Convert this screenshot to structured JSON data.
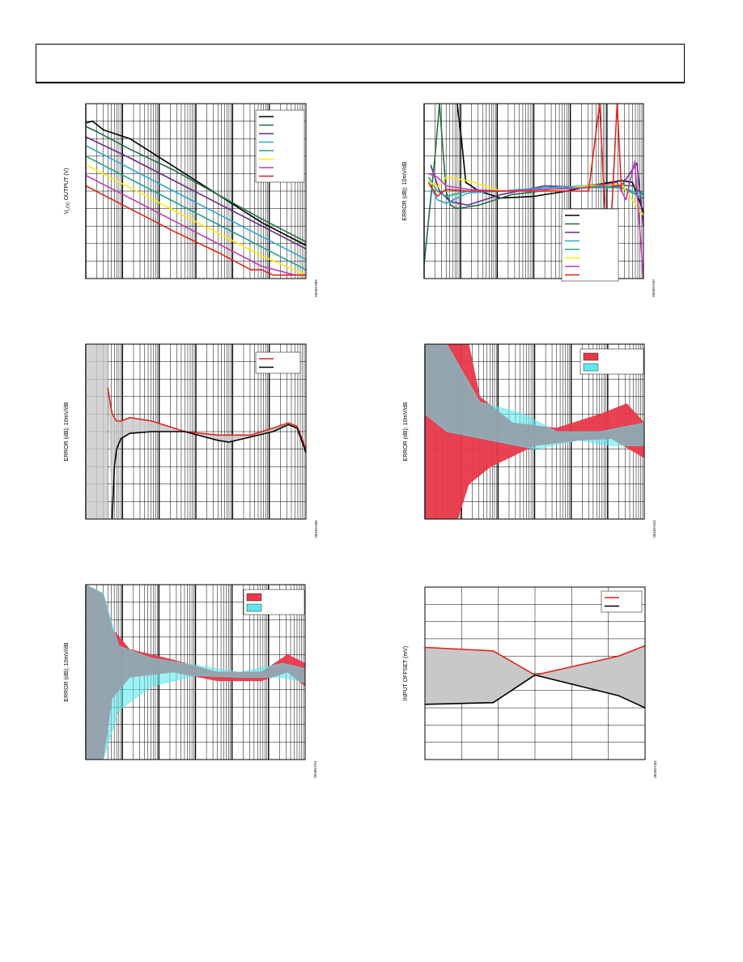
{
  "header": {
    "text": ""
  },
  "colors": {
    "black": "#000000",
    "green": "#1e7040",
    "purple": "#6a2a8a",
    "blue": "#2aa7d6",
    "teal": "#1aa58a",
    "yellow": "#ffee00",
    "magenta": "#c13ab8",
    "red": "#e2231a",
    "bandRed": "#e8394a",
    "bandCyan": "#5ee8ee",
    "bandGray": "#c8c8c8"
  },
  "chart_data": [
    {
      "id": "c1",
      "type": "line",
      "ylabel_main": "V",
      "ylabel_sub": "LOG",
      "ylabel_rest": " OUTPUT (V)",
      "xscale": "log",
      "fig_id": "05459-009",
      "legend": [
        "",
        "",
        "",
        "",
        "",
        "",
        "",
        ""
      ],
      "series": [
        {
          "color": "black",
          "x": [
            0,
            0.03,
            0.08,
            0.2,
            0.35,
            0.5,
            0.65,
            0.8,
            1.0
          ],
          "y": [
            0.89,
            0.9,
            0.85,
            0.8,
            0.68,
            0.56,
            0.44,
            0.32,
            0.19
          ]
        },
        {
          "color": "green",
          "x": [
            0,
            0.05,
            0.2,
            0.4,
            0.6,
            0.8,
            1.0
          ],
          "y": [
            0.87,
            0.84,
            0.74,
            0.62,
            0.48,
            0.34,
            0.21
          ]
        },
        {
          "color": "purple",
          "x": [
            0,
            0.2,
            0.4,
            0.6,
            0.8,
            1.0
          ],
          "y": [
            0.81,
            0.69,
            0.56,
            0.43,
            0.3,
            0.17
          ]
        },
        {
          "color": "blue",
          "x": [
            0,
            0.2,
            0.4,
            0.6,
            0.8,
            1.0
          ],
          "y": [
            0.76,
            0.63,
            0.5,
            0.37,
            0.24,
            0.11
          ]
        },
        {
          "color": "teal",
          "x": [
            0,
            0.2,
            0.4,
            0.6,
            0.8,
            1.0
          ],
          "y": [
            0.7,
            0.57,
            0.44,
            0.31,
            0.18,
            0.05
          ]
        },
        {
          "color": "yellow",
          "x": [
            0,
            0.2,
            0.4,
            0.6,
            0.8,
            1.0
          ],
          "y": [
            0.65,
            0.52,
            0.39,
            0.26,
            0.13,
            0.02
          ]
        },
        {
          "color": "magenta",
          "x": [
            0,
            0.2,
            0.4,
            0.6,
            0.8,
            0.95,
            1.0
          ],
          "y": [
            0.59,
            0.46,
            0.33,
            0.2,
            0.07,
            0.02,
            0.02
          ]
        },
        {
          "color": "red",
          "x": [
            0,
            0.2,
            0.4,
            0.6,
            0.75,
            0.8,
            0.85,
            1.0
          ],
          "y": [
            0.53,
            0.4,
            0.27,
            0.15,
            0.05,
            0.05,
            0.02,
            0.02
          ]
        }
      ]
    },
    {
      "id": "c2",
      "type": "line",
      "ylabel": "ERROR (dB); 10mV/dB",
      "xscale": "log",
      "fig_id": "05459-010",
      "legend": [
        "",
        "",
        "",
        "",
        "",
        "",
        "",
        ""
      ],
      "series": [
        {
          "color": "black",
          "x": [
            0.15,
            0.17,
            0.19,
            0.25,
            0.35,
            0.5,
            0.65,
            0.8,
            0.9,
            0.95,
            1.0
          ],
          "y": [
            1.0,
            0.8,
            0.55,
            0.5,
            0.46,
            0.47,
            0.5,
            0.54,
            0.56,
            0.55,
            0.38
          ]
        },
        {
          "color": "green",
          "x": [
            0,
            0.05,
            0.07,
            0.1,
            0.12,
            0.15,
            0.25,
            0.4,
            0.6,
            0.8,
            0.95,
            1.0
          ],
          "y": [
            0.08,
            0.7,
            1.0,
            0.5,
            0.42,
            0.4,
            0.42,
            0.48,
            0.51,
            0.54,
            0.53,
            0.48
          ]
        },
        {
          "color": "purple",
          "x": [
            0.03,
            0.07,
            0.12,
            0.2,
            0.35,
            0.55,
            0.75,
            0.9,
            0.97,
            1.0
          ],
          "y": [
            0.65,
            0.5,
            0.44,
            0.42,
            0.48,
            0.53,
            0.52,
            0.53,
            0.66,
            0.3
          ]
        },
        {
          "color": "blue",
          "x": [
            0.02,
            0.06,
            0.1,
            0.2,
            0.35,
            0.55,
            0.75,
            0.9,
            1.0
          ],
          "y": [
            0.55,
            0.45,
            0.43,
            0.49,
            0.5,
            0.52,
            0.53,
            0.52,
            0.48
          ]
        },
        {
          "color": "teal",
          "x": [
            0.02,
            0.06,
            0.1,
            0.2,
            0.35,
            0.55,
            0.75,
            0.9,
            1.0
          ],
          "y": [
            0.58,
            0.5,
            0.47,
            0.5,
            0.5,
            0.51,
            0.52,
            0.52,
            0.46
          ]
        },
        {
          "color": "yellow",
          "x": [
            0.02,
            0.06,
            0.1,
            0.2,
            0.35,
            0.55,
            0.75,
            0.9,
            1.0
          ],
          "y": [
            0.56,
            0.52,
            0.58,
            0.56,
            0.5,
            0.5,
            0.53,
            0.54,
            0.36
          ]
        },
        {
          "color": "magenta",
          "x": [
            0.02,
            0.06,
            0.1,
            0.2,
            0.35,
            0.55,
            0.75,
            0.88,
            0.92,
            0.96,
            1.0
          ],
          "y": [
            0.6,
            0.58,
            0.53,
            0.51,
            0.5,
            0.51,
            0.52,
            0.55,
            0.45,
            0.67,
            0.0
          ]
        },
        {
          "color": "red",
          "x": [
            0.02,
            0.06,
            0.1,
            0.2,
            0.35,
            0.55,
            0.75,
            0.8,
            0.84,
            0.88,
            0.9
          ],
          "y": [
            0.55,
            0.47,
            0.51,
            0.5,
            0.5,
            0.5,
            0.5,
            1.0,
            0.0,
            1.0,
            0.5
          ]
        }
      ]
    },
    {
      "id": "c3",
      "type": "line",
      "ylabel": "ERROR (dB); 10mV/dB",
      "xscale": "log",
      "fig_id": "05459-065",
      "legend": [
        "",
        ""
      ],
      "series": [
        {
          "color": "red",
          "x": [
            0.1,
            0.12,
            0.14,
            0.16,
            0.2,
            0.3,
            0.45,
            0.6,
            0.75,
            0.85,
            0.92,
            0.96,
            1.0
          ],
          "y": [
            0.75,
            0.6,
            0.56,
            0.56,
            0.58,
            0.56,
            0.5,
            0.48,
            0.48,
            0.52,
            0.55,
            0.53,
            0.4
          ]
        },
        {
          "color": "black",
          "x": [
            0.12,
            0.13,
            0.14,
            0.16,
            0.2,
            0.3,
            0.45,
            0.6,
            0.65,
            0.75,
            0.85,
            0.92,
            0.96,
            1.0
          ],
          "y": [
            0.0,
            0.3,
            0.4,
            0.46,
            0.49,
            0.5,
            0.5,
            0.45,
            0.44,
            0.47,
            0.5,
            0.54,
            0.52,
            0.38
          ]
        }
      ]
    },
    {
      "id": "c4",
      "type": "area",
      "ylabel": "ERROR (dB); 10mV/dB",
      "xscale": "log",
      "fig_id": "05459-012",
      "legend": [
        "",
        ""
      ],
      "bands": [
        {
          "color": "bandRed",
          "upper": [
            [
              0,
              1.0
            ],
            [
              0.2,
              1.0
            ],
            [
              0.25,
              0.7
            ],
            [
              0.4,
              0.55
            ],
            [
              0.6,
              0.52
            ],
            [
              0.8,
              0.6
            ],
            [
              0.92,
              0.66
            ],
            [
              1.0,
              0.55
            ]
          ],
          "lower": [
            [
              0,
              0.0
            ],
            [
              0.15,
              0.0
            ],
            [
              0.2,
              0.2
            ],
            [
              0.3,
              0.3
            ],
            [
              0.5,
              0.42
            ],
            [
              0.7,
              0.45
            ],
            [
              0.85,
              0.46
            ],
            [
              1.0,
              0.35
            ]
          ]
        },
        {
          "color": "bandCyan",
          "upper": [
            [
              0,
              1.0
            ],
            [
              0.1,
              1.0
            ],
            [
              0.25,
              0.67
            ],
            [
              0.45,
              0.6
            ],
            [
              0.6,
              0.5
            ],
            [
              0.8,
              0.5
            ],
            [
              1.0,
              0.55
            ]
          ],
          "lower": [
            [
              0,
              0.6
            ],
            [
              0.1,
              0.5
            ],
            [
              0.3,
              0.45
            ],
            [
              0.5,
              0.4
            ],
            [
              0.7,
              0.45
            ],
            [
              0.85,
              0.42
            ],
            [
              1.0,
              0.42
            ]
          ]
        }
      ]
    },
    {
      "id": "c5",
      "type": "area",
      "ylabel": "ERROR (dB); 10mV/dB",
      "xscale": "log",
      "fig_id": "05459-011",
      "legend": [
        "",
        ""
      ],
      "bands": [
        {
          "color": "bandRed",
          "upper": [
            [
              0,
              1.0
            ],
            [
              0.08,
              0.95
            ],
            [
              0.12,
              0.75
            ],
            [
              0.2,
              0.63
            ],
            [
              0.4,
              0.57
            ],
            [
              0.6,
              0.5
            ],
            [
              0.8,
              0.5
            ],
            [
              0.92,
              0.6
            ],
            [
              1.0,
              0.55
            ]
          ],
          "lower": [
            [
              0,
              0.0
            ],
            [
              0.08,
              0.0
            ],
            [
              0.12,
              0.35
            ],
            [
              0.2,
              0.47
            ],
            [
              0.4,
              0.5
            ],
            [
              0.6,
              0.45
            ],
            [
              0.8,
              0.45
            ],
            [
              0.92,
              0.5
            ],
            [
              1.0,
              0.42
            ]
          ]
        },
        {
          "color": "bandCyan",
          "upper": [
            [
              0,
              1.0
            ],
            [
              0.08,
              0.95
            ],
            [
              0.15,
              0.65
            ],
            [
              0.3,
              0.58
            ],
            [
              0.5,
              0.54
            ],
            [
              0.7,
              0.5
            ],
            [
              0.9,
              0.55
            ],
            [
              1.0,
              0.52
            ]
          ],
          "lower": [
            [
              0,
              0.0
            ],
            [
              0.08,
              0.0
            ],
            [
              0.15,
              0.28
            ],
            [
              0.3,
              0.42
            ],
            [
              0.5,
              0.48
            ],
            [
              0.7,
              0.47
            ],
            [
              0.9,
              0.47
            ],
            [
              1.0,
              0.44
            ]
          ]
        }
      ]
    },
    {
      "id": "c6",
      "type": "line",
      "ylabel": "INPUT OFFSET (mV)",
      "xscale": "linear",
      "fig_id": "05459-034",
      "legend": [
        "",
        ""
      ],
      "fill_between": true,
      "series": [
        {
          "color": "red",
          "x": [
            0,
            0.31,
            0.5,
            0.88,
            1.0
          ],
          "y": [
            0.65,
            0.63,
            0.49,
            0.6,
            0.66
          ]
        },
        {
          "color": "black",
          "x": [
            0,
            0.31,
            0.5,
            0.88,
            1.0
          ],
          "y": [
            0.32,
            0.33,
            0.49,
            0.37,
            0.3
          ]
        }
      ]
    }
  ]
}
